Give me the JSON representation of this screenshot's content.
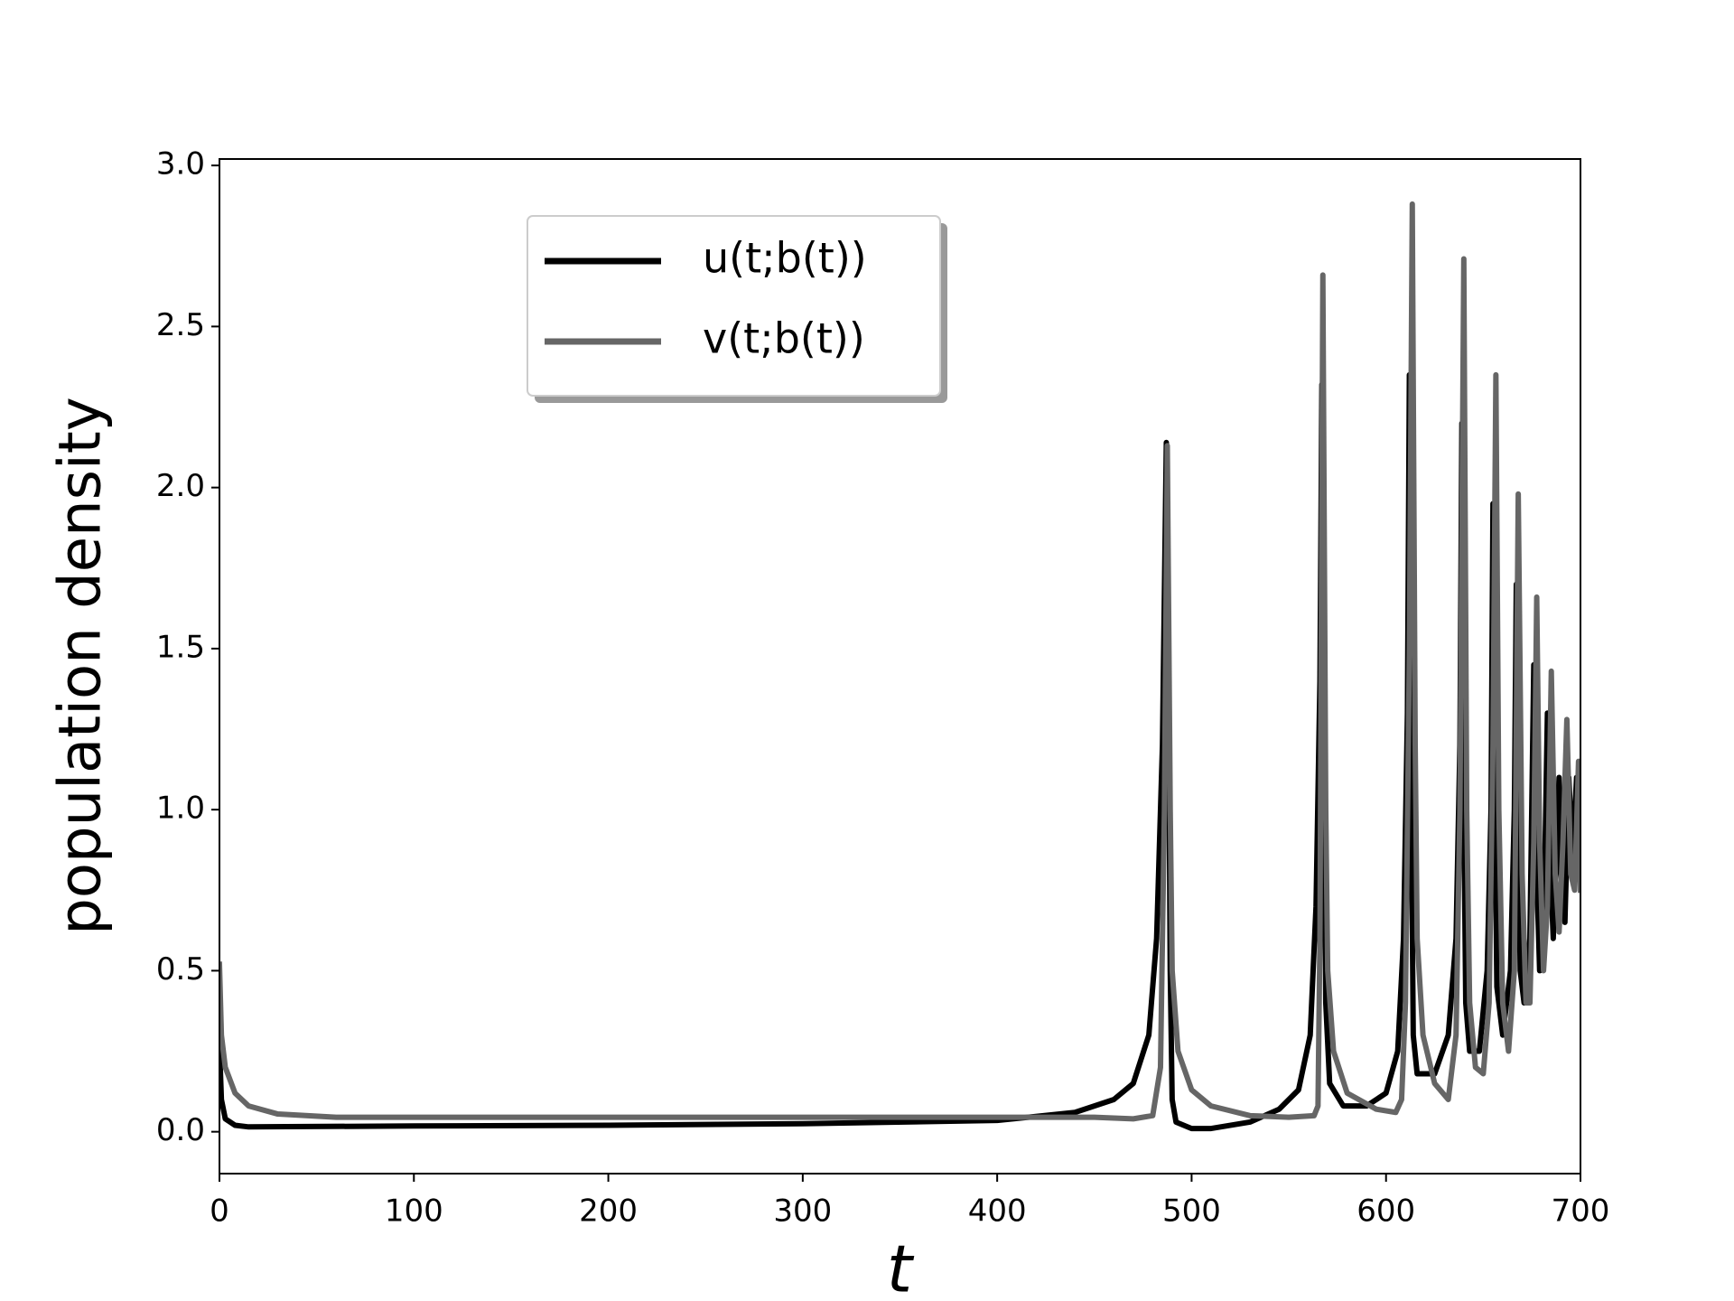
{
  "chart_data": {
    "type": "line",
    "xlabel": "t",
    "ylabel": "population density",
    "xlim": [
      0,
      700
    ],
    "ylim": [
      -0.13,
      3.02
    ],
    "xticks": [
      0,
      100,
      200,
      300,
      400,
      500,
      600,
      700
    ],
    "yticks": [
      {
        "value": 0,
        "label": "0.0"
      },
      0.5,
      {
        "value": 1,
        "label": "1.0"
      },
      1.5,
      {
        "value": 2,
        "label": "2.0"
      },
      2.5,
      {
        "value": 3,
        "label": "3.0"
      }
    ],
    "grid": false,
    "series": [
      {
        "name": "u(t;b(t))",
        "color": "#000000",
        "x": [
          0,
          1,
          3,
          8,
          15,
          100,
          200,
          300,
          400,
          440,
          460,
          470,
          478,
          482,
          485,
          487,
          488,
          489,
          490,
          492,
          500,
          510,
          530,
          545,
          555,
          561,
          564,
          566,
          567,
          568,
          569,
          571,
          578,
          590,
          600,
          606,
          609,
          611,
          612,
          613,
          614,
          616,
          625,
          632,
          636,
          638,
          639,
          640,
          641,
          643,
          648,
          652,
          654,
          655,
          656,
          657,
          660,
          664,
          666,
          667,
          668,
          669,
          671,
          674,
          676,
          677,
          679,
          681,
          683,
          684,
          686,
          689,
          690,
          692,
          694,
          696,
          698,
          700
        ],
        "values": [
          0.27,
          0.1,
          0.04,
          0.02,
          0.015,
          0.018,
          0.02,
          0.025,
          0.035,
          0.06,
          0.1,
          0.15,
          0.3,
          0.6,
          1.2,
          2.14,
          1.5,
          0.5,
          0.1,
          0.03,
          0.01,
          0.01,
          0.03,
          0.07,
          0.13,
          0.3,
          0.7,
          1.4,
          2.32,
          1.2,
          0.4,
          0.15,
          0.08,
          0.08,
          0.12,
          0.25,
          0.6,
          1.3,
          2.35,
          1.0,
          0.3,
          0.18,
          0.18,
          0.3,
          0.6,
          1.2,
          2.2,
          1.0,
          0.4,
          0.25,
          0.25,
          0.5,
          1.0,
          1.95,
          1.0,
          0.45,
          0.3,
          0.5,
          1.0,
          1.7,
          1.0,
          0.5,
          0.4,
          0.6,
          1.45,
          0.9,
          0.5,
          0.6,
          1.3,
          0.9,
          0.6,
          1.1,
          0.8,
          0.65,
          1.1,
          0.85,
          1.1,
          0.9
        ]
      },
      {
        "name": "v(t;b(t))",
        "color": "#666666",
        "x": [
          0,
          1,
          3,
          8,
          15,
          30,
          60,
          200,
          400,
          450,
          470,
          480,
          484,
          486,
          487.5,
          489,
          490,
          493,
          500,
          510,
          530,
          550,
          563,
          565,
          566,
          567.5,
          569,
          570,
          573,
          580,
          595,
          605,
          608,
          610,
          612,
          613.5,
          615,
          616,
          619,
          625,
          632,
          636,
          638,
          640,
          641.5,
          643,
          646,
          650,
          653,
          655,
          656.5,
          658,
          660,
          663,
          666,
          668,
          670,
          672,
          674,
          676,
          677.5,
          679,
          681,
          683,
          685,
          687,
          689,
          691,
          693,
          695,
          697,
          699,
          700
        ],
        "values": [
          0.52,
          0.3,
          0.2,
          0.12,
          0.08,
          0.055,
          0.045,
          0.045,
          0.045,
          0.045,
          0.04,
          0.05,
          0.2,
          1.0,
          2.13,
          1.0,
          0.5,
          0.25,
          0.13,
          0.08,
          0.05,
          0.045,
          0.05,
          0.08,
          0.6,
          2.66,
          1.0,
          0.5,
          0.25,
          0.12,
          0.07,
          0.06,
          0.1,
          0.4,
          1.5,
          2.88,
          1.2,
          0.6,
          0.3,
          0.15,
          0.1,
          0.3,
          1.0,
          2.71,
          1.0,
          0.4,
          0.2,
          0.18,
          0.4,
          1.2,
          2.35,
          1.0,
          0.4,
          0.25,
          0.5,
          1.98,
          0.8,
          0.4,
          0.4,
          0.9,
          1.66,
          0.9,
          0.5,
          0.7,
          1.43,
          0.8,
          0.62,
          0.9,
          1.28,
          0.8,
          0.75,
          1.15,
          0.75
        ]
      }
    ]
  }
}
